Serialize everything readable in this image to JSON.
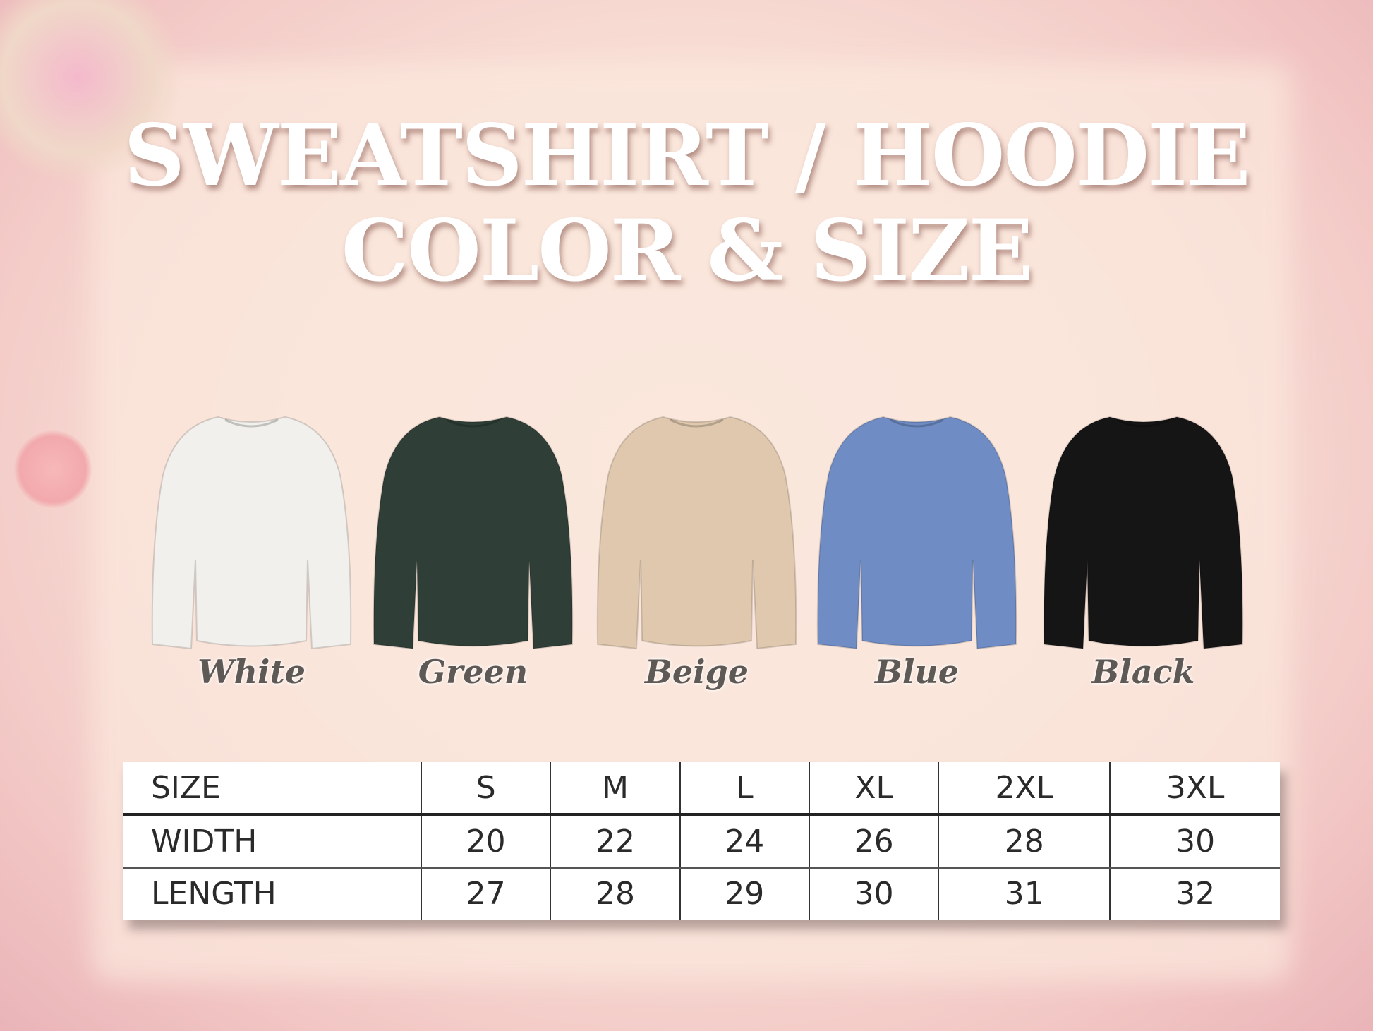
{
  "title": {
    "line1": "SWEATSHIRT / HOODIE",
    "line2": "COLOR & SIZE"
  },
  "colors": [
    {
      "label": "White",
      "hex": "#f1f0ec"
    },
    {
      "label": "Green",
      "hex": "#2f3f37"
    },
    {
      "label": "Beige",
      "hex": "#dfc8ad"
    },
    {
      "label": "Blue",
      "hex": "#6f8cc4"
    },
    {
      "label": "Black",
      "hex": "#151515"
    }
  ],
  "size_table": {
    "header": [
      "SIZE",
      "S",
      "M",
      "L",
      "XL",
      "2XL",
      "3XL"
    ],
    "rows": [
      [
        "WIDTH",
        "20",
        "22",
        "24",
        "26",
        "28",
        "30"
      ],
      [
        "LENGTH",
        "27",
        "28",
        "29",
        "30",
        "31",
        "32"
      ]
    ]
  }
}
